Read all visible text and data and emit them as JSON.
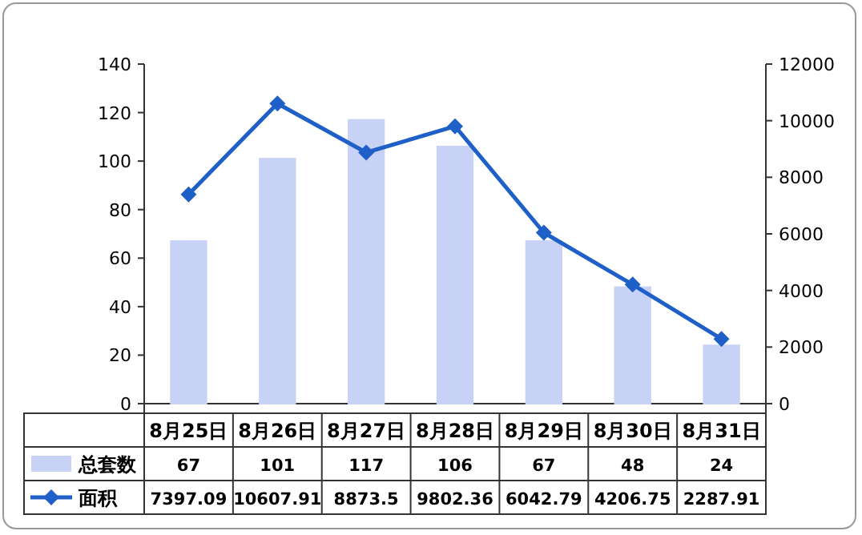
{
  "chart_data": {
    "type": "bar",
    "categories": [
      "8月25日",
      "8月26日",
      "8月27日",
      "8月28日",
      "8月29日",
      "8月30日",
      "8月31日"
    ],
    "series": [
      {
        "name": "总套数",
        "color": "#c8d2f6",
        "values": [
          67,
          101,
          117,
          106,
          67,
          48,
          24
        ]
      },
      {
        "name": "面积",
        "type": "line",
        "axis": "y2",
        "color": "#1f5fc8",
        "values": [
          7397.09,
          10607.91,
          8873.5,
          9802.36,
          6042.79,
          4206.75,
          2287.91
        ]
      }
    ],
    "ylim": [
      0,
      140
    ],
    "yticks": [
      0,
      20,
      40,
      60,
      80,
      100,
      120,
      140
    ],
    "y2lim": [
      0,
      12000
    ],
    "y2ticks": [
      0,
      2000,
      4000,
      6000,
      8000,
      10000,
      12000
    ],
    "data_labels": true,
    "legend": "bottom",
    "marker": "diamond",
    "grid": false
  }
}
